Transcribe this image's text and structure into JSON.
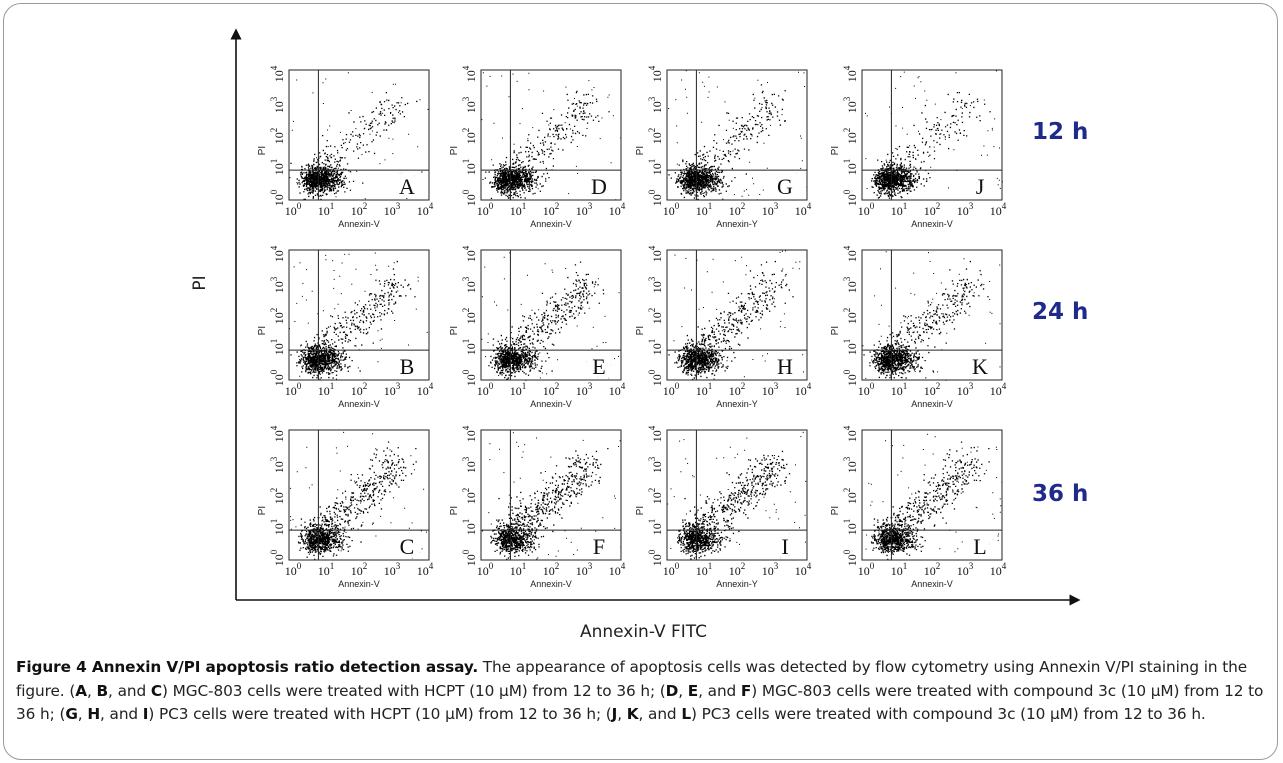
{
  "figure": {
    "y_axis_label": "PI",
    "x_axis_label": "Annexin-V FITC",
    "time_labels": [
      "12 h",
      "24 h",
      "36 h"
    ],
    "time_label_color": "#1f2a8a",
    "panels": [
      {
        "letter": "A",
        "ylabel": "PI",
        "xlabel": "Annexin-V"
      },
      {
        "letter": "D",
        "ylabel": "PI",
        "xlabel": "Annexin-V"
      },
      {
        "letter": "G",
        "ylabel": "PI",
        "xlabel": "Annexin-Y"
      },
      {
        "letter": "J",
        "ylabel": "PI",
        "xlabel": "Annexin-V"
      },
      {
        "letter": "B",
        "ylabel": "PI",
        "xlabel": "Annexin-V"
      },
      {
        "letter": "E",
        "ylabel": "PI",
        "xlabel": "Annexin-V"
      },
      {
        "letter": "H",
        "ylabel": "PI",
        "xlabel": "Annexin-Y"
      },
      {
        "letter": "K",
        "ylabel": "PI",
        "xlabel": "Annexin-V"
      },
      {
        "letter": "C",
        "ylabel": "PI",
        "xlabel": "Annexin-V"
      },
      {
        "letter": "F",
        "ylabel": "PI",
        "xlabel": "Annexin-V"
      },
      {
        "letter": "I",
        "ylabel": "PI",
        "xlabel": "Annexin-Y"
      },
      {
        "letter": "L",
        "ylabel": "PI",
        "xlabel": "Annexin-V"
      }
    ],
    "tick_labels": [
      "10",
      "10",
      "10",
      "10",
      "10"
    ],
    "tick_exponents": [
      "0",
      "1",
      "2",
      "3",
      "4"
    ]
  },
  "caption": {
    "title": "Figure 4 Annexin V/PI apoptosis ratio detection assay.",
    "text_1": " The appearance of apoptosis cells was detected by flow cytometry using Annexin V/PI staining in the figure. (",
    "A": "A",
    "sep1": ", ",
    "B": "B",
    "sep2": ", and ",
    "C": "C",
    "text_2": ") MGC-803 cells were treated with HCPT (10 μM) from 12 to 36 h; (",
    "D": "D",
    "sep3": ", ",
    "E": "E",
    "sep4": ", and ",
    "F": "F",
    "text_3": ") MGC-803 cells were treated with compound 3c (10 μM) from 12 to 36 h; (",
    "G": "G",
    "sep5": ", ",
    "H": "H",
    "sep6": ", and ",
    "I": "I",
    "text_4": ") PC3 cells were treated with HCPT (10 μM) from 12 to 36 h; (",
    "J": "J",
    "sep7": ", ",
    "K": "K",
    "sep8": ", and ",
    "L": "L",
    "text_5": ") PC3 cells were treated with compound 3c (10 μM) from 12 to 36 h."
  }
}
